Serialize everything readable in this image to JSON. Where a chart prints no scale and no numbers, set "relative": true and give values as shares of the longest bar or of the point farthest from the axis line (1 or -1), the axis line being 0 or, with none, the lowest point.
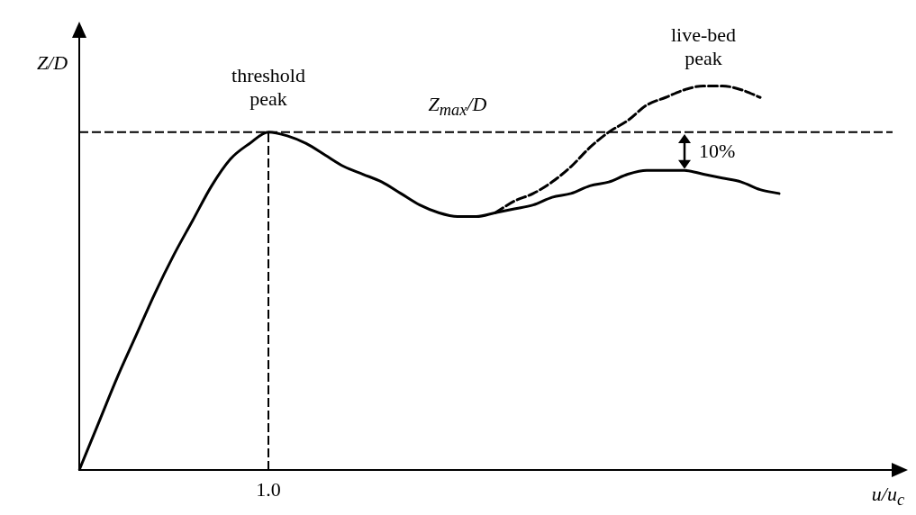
{
  "chart_data": {
    "type": "line",
    "relative": true,
    "xlabel": "u/u$_{c}$",
    "ylabel": "Z/D",
    "categories": [
      null,
      null,
      null,
      null,
      null,
      null,
      null,
      null,
      null,
      null,
      null,
      null,
      null,
      null,
      null,
      null,
      null,
      null,
      null,
      null,
      null,
      null,
      null,
      null,
      null,
      null,
      null,
      null,
      null,
      null,
      null,
      null,
      null,
      null,
      null,
      null,
      null,
      null,
      null,
      null,
      null,
      null,
      null,
      null
    ],
    "series": [
      {
        "color": "#000000",
        "line_style": "solid",
        "values": [
          0,
          0.12,
          0.24,
          0.35,
          0.46,
          0.56,
          0.65,
          0.74,
          0.81,
          0.85,
          0.88,
          0.87,
          0.85,
          0.82,
          0.79,
          0.77,
          0.75,
          0.72,
          0.69,
          0.67,
          0.66,
          0.66,
          0.67,
          0.68,
          0.69,
          0.71,
          0.72,
          0.74,
          0.75,
          0.77,
          0.78,
          0.78,
          0.78,
          0.77,
          0.76,
          0.75,
          0.73,
          0.72,
          null,
          null,
          null,
          null,
          null,
          null
        ]
      },
      {
        "color": "#000000",
        "line_style": "dashed",
        "values": [
          null,
          null,
          null,
          null,
          null,
          null,
          null,
          null,
          null,
          null,
          null,
          null,
          null,
          null,
          null,
          null,
          null,
          null,
          null,
          null,
          null,
          null,
          0.67,
          0.7,
          0.72,
          0.75,
          0.79,
          0.84,
          0.88,
          0.91,
          0.95,
          0.97,
          0.99,
          1,
          1,
          0.99,
          0.97,
          null,
          null,
          null,
          null,
          null,
          null,
          null
        ]
      }
    ],
    "ref_lines": [
      {
        "axis": "y",
        "value": 0.88,
        "line_style": "dashed",
        "color": "#000000"
      },
      {
        "axis": "x",
        "label": "1.0",
        "line_style": "dashed",
        "color": "#000000"
      }
    ],
    "annotations": [
      "threshold peak",
      "Z$_{max}$/D",
      "live-bed peak",
      "10%"
    ],
    "legend": false,
    "grid": false
  }
}
